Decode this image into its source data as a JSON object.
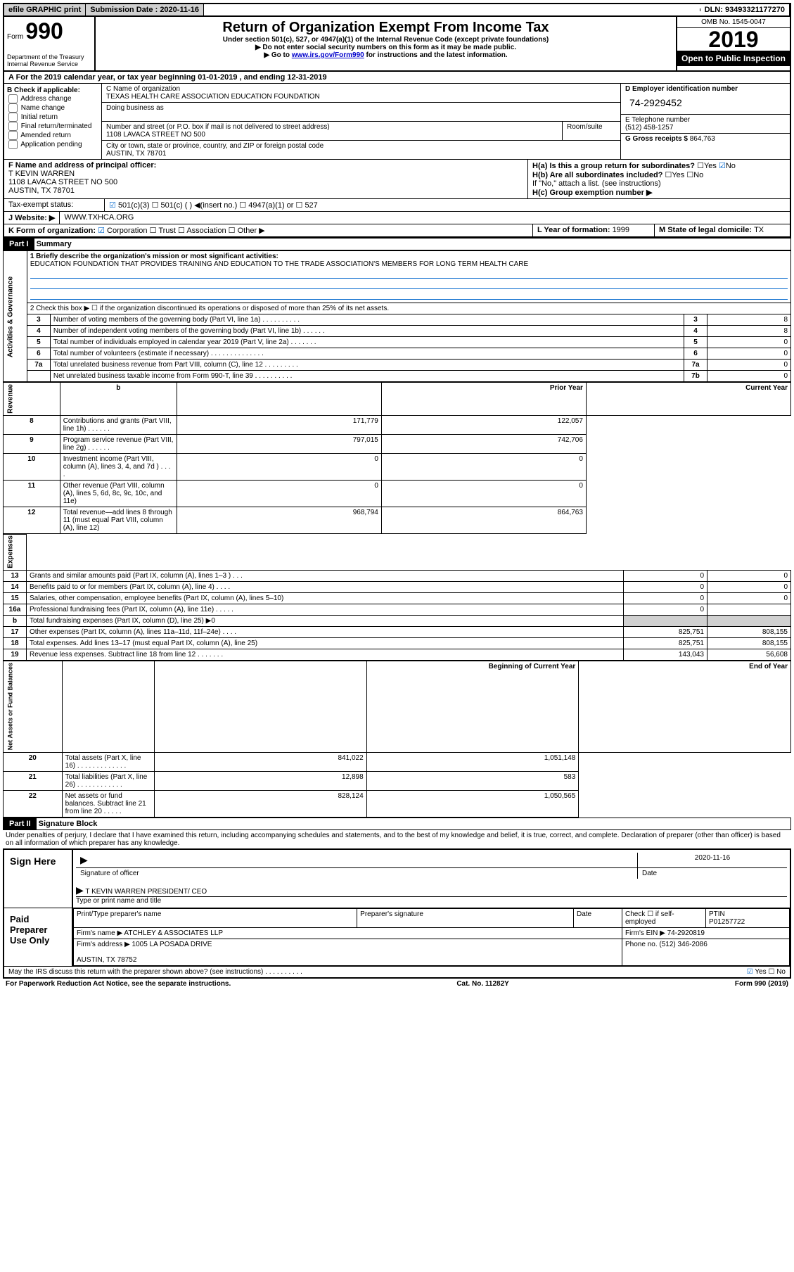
{
  "topbar": {
    "efile": "efile GRAPHIC print",
    "sub_label": "Submission Date : 2020-11-16",
    "dln": "DLN: 93493321177270"
  },
  "header": {
    "form_word": "Form",
    "form_num": "990",
    "dept": "Department of the Treasury\nInternal Revenue Service",
    "title": "Return of Organization Exempt From Income Tax",
    "sub1": "Under section 501(c), 527, or 4947(a)(1) of the Internal Revenue Code (except private foundations)",
    "sub2": "▶ Do not enter social security numbers on this form as it may be made public.",
    "sub3_pre": "▶ Go to ",
    "sub3_link": "www.irs.gov/Form990",
    "sub3_post": " for instructions and the latest information.",
    "omb": "OMB No. 1545-0047",
    "year": "2019",
    "open": "Open to Public Inspection"
  },
  "sectionA": {
    "tax_year": "A For the 2019 calendar year, or tax year beginning 01-01-2019   , and ending 12-31-2019",
    "b_label": "B Check if applicable:",
    "b_opts": [
      "Address change",
      "Name change",
      "Initial return",
      "Final return/terminated",
      "Amended return",
      "Application pending"
    ],
    "c_name_label": "C Name of organization",
    "c_name": "TEXAS HEALTH CARE ASSOCIATION EDUCATION FOUNDATION",
    "dba_label": "Doing business as",
    "addr_label": "Number and street (or P.O. box if mail is not delivered to street address)",
    "room": "Room/suite",
    "addr": "1108 LAVACA STREET NO 500",
    "city_label": "City or town, state or province, country, and ZIP or foreign postal code",
    "city": "AUSTIN, TX  78701",
    "d_label": "D Employer identification number",
    "d_ein": "74-2929452",
    "e_label": "E Telephone number",
    "e_phone": "(512) 458-1257",
    "g_label": "G Gross receipts $ ",
    "g_amt": "864,763",
    "f_label": "F  Name and address of principal officer:",
    "f_name": "T KEVIN WARREN\n1108 LAVACA STREET NO 500\nAUSTIN, TX  78701",
    "ha_label": "H(a)  Is this a group return for subordinates?",
    "hb_label": "H(b)  Are all subordinates included?",
    "hb_note": "If \"No,\" attach a list. (see instructions)",
    "hc_label": "H(c)  Group exemption number ▶",
    "yes": "Yes",
    "no": "No",
    "tax_exempt": "Tax-exempt status:",
    "te_501c3": "501(c)(3)",
    "te_501c": "501(c) (  ) ◀(insert no.)",
    "te_4947": "4947(a)(1) or",
    "te_527": "527",
    "j_label": "J Website: ▶",
    "j_site": "WWW.TXHCA.ORG",
    "k_label": "K Form of organization:",
    "k_corp": "Corporation",
    "k_trust": "Trust",
    "k_assoc": "Association",
    "k_other": "Other ▶",
    "l_label": "L Year of formation: ",
    "l_val": "1999",
    "m_label": "M State of legal domicile: ",
    "m_val": "TX"
  },
  "part1": {
    "header": "Part I",
    "title": "Summary",
    "line1_label": "1  Briefly describe the organization's mission or most significant activities:",
    "line1_text": "EDUCATION FOUNDATION THAT PROVIDES TRAINING AND EDUCATION TO THE TRADE ASSOCIATION'S MEMBERS FOR LONG TERM HEALTH CARE",
    "line2": "2  Check this box ▶ ☐  if the organization discontinued its operations or disposed of more than 25% of its net assets.",
    "rows_ag": [
      {
        "n": "3",
        "label": "Number of voting members of the governing body (Part VI, line 1a)  .  .  .  .  .  .  .  .  .  .",
        "box": "3",
        "val": "8"
      },
      {
        "n": "4",
        "label": "Number of independent voting members of the governing body (Part VI, line 1b)  .  .  .  .  .  .",
        "box": "4",
        "val": "8"
      },
      {
        "n": "5",
        "label": "Total number of individuals employed in calendar year 2019 (Part V, line 2a)  .  .  .  .  .  .  .",
        "box": "5",
        "val": "0"
      },
      {
        "n": "6",
        "label": "Total number of volunteers (estimate if necessary)   .  .  .  .  .  .  .  .  .  .  .  .  .  .",
        "box": "6",
        "val": "0"
      },
      {
        "n": "7a",
        "label": "Total unrelated business revenue from Part VIII, column (C), line 12  .  .  .  .  .  .  .  .  .",
        "box": "7a",
        "val": "0"
      },
      {
        "n": "",
        "label": "Net unrelated business taxable income from Form 990-T, line 39   .  .  .  .  .  .  .  .  .  .",
        "box": "7b",
        "val": "0"
      }
    ],
    "col_prior": "Prior Year",
    "col_current": "Current Year",
    "rows_rev": [
      {
        "n": "8",
        "label": "Contributions and grants (Part VIII, line 1h)   .  .  .  .  .  .",
        "p": "171,779",
        "c": "122,057"
      },
      {
        "n": "9",
        "label": "Program service revenue (Part VIII, line 2g)   .  .  .  .  .  .",
        "p": "797,015",
        "c": "742,706"
      },
      {
        "n": "10",
        "label": "Investment income (Part VIII, column (A), lines 3, 4, and 7d )   .  .  .  .",
        "p": "0",
        "c": "0"
      },
      {
        "n": "11",
        "label": "Other revenue (Part VIII, column (A), lines 5, 6d, 8c, 9c, 10c, and 11e)",
        "p": "0",
        "c": "0"
      },
      {
        "n": "12",
        "label": "Total revenue—add lines 8 through 11 (must equal Part VIII, column (A), line 12)",
        "p": "968,794",
        "c": "864,763"
      }
    ],
    "rows_exp": [
      {
        "n": "13",
        "label": "Grants and similar amounts paid (Part IX, column (A), lines 1–3 )  .  .  .",
        "p": "0",
        "c": "0"
      },
      {
        "n": "14",
        "label": "Benefits paid to or for members (Part IX, column (A), line 4)   .  .  .  .",
        "p": "0",
        "c": "0"
      },
      {
        "n": "15",
        "label": "Salaries, other compensation, employee benefits (Part IX, column (A), lines 5–10)",
        "p": "0",
        "c": "0"
      },
      {
        "n": "16a",
        "label": "Professional fundraising fees (Part IX, column (A), line 11e)   .  .  .  .  .",
        "p": "0",
        "c": ""
      },
      {
        "n": "b",
        "label": "Total fundraising expenses (Part IX, column (D), line 25) ▶0",
        "p": "",
        "c": "",
        "shaded": true
      },
      {
        "n": "17",
        "label": "Other expenses (Part IX, column (A), lines 11a–11d, 11f–24e)   .  .  .  .",
        "p": "825,751",
        "c": "808,155"
      },
      {
        "n": "18",
        "label": "Total expenses. Add lines 13–17 (must equal Part IX, column (A), line 25)",
        "p": "825,751",
        "c": "808,155"
      },
      {
        "n": "19",
        "label": "Revenue less expenses. Subtract line 18 from line 12  .  .  .  .  .  .  .",
        "p": "143,043",
        "c": "56,608"
      }
    ],
    "col_begin": "Beginning of Current Year",
    "col_end": "End of Year",
    "rows_net": [
      {
        "n": "20",
        "label": "Total assets (Part X, line 16)  .  .  .  .  .  .  .  .  .  .  .  .  .",
        "p": "841,022",
        "c": "1,051,148"
      },
      {
        "n": "21",
        "label": "Total liabilities (Part X, line 26)  .  .  .  .  .  .  .  .  .  .  .  .",
        "p": "12,898",
        "c": "583"
      },
      {
        "n": "22",
        "label": "Net assets or fund balances. Subtract line 21 from line 20  .  .  .  .  .",
        "p": "828,124",
        "c": "1,050,565"
      }
    ],
    "side_ag": "Activities & Governance",
    "side_rev": "Revenue",
    "side_exp": "Expenses",
    "side_net": "Net Assets or Fund Balances"
  },
  "part2": {
    "header": "Part II",
    "title": "Signature Block",
    "penalty": "Under penalties of perjury, I declare that I have examined this return, including accompanying schedules and statements, and to the best of my knowledge and belief, it is true, correct, and complete. Declaration of preparer (other than officer) is based on all information of which preparer has any knowledge.",
    "sign_here": "Sign Here",
    "sig_officer": "Signature of officer",
    "sig_date": "Date",
    "sig_date_val": "2020-11-16",
    "sig_name": "T KEVIN WARREN  PRESIDENT/ CEO",
    "sig_type": "Type or print name and title",
    "paid": "Paid Preparer Use Only",
    "prep_name": "Print/Type preparer's name",
    "prep_sig": "Preparer's signature",
    "prep_date": "Date",
    "prep_check": "Check ☐ if self-employed",
    "ptin_label": "PTIN",
    "ptin": "P01257722",
    "firm_name_label": "Firm's name    ▶",
    "firm_name": "ATCHLEY & ASSOCIATES LLP",
    "firm_ein_label": "Firm's EIN ▶",
    "firm_ein": "74-2920819",
    "firm_addr_label": "Firm's address ▶",
    "firm_addr": "1005 LA POSADA DRIVE\n\nAUSTIN, TX  78752",
    "firm_phone_label": "Phone no.",
    "firm_phone": "(512) 346-2086",
    "discuss": "May the IRS discuss this return with the preparer shown above? (see instructions)   .  .  .  .  .  .  .  .  .  .",
    "discuss_yes": "Yes",
    "discuss_no": "No"
  },
  "footer": {
    "pra": "For Paperwork Reduction Act Notice, see the separate instructions.",
    "cat": "Cat. No. 11282Y",
    "form": "Form 990 (2019)"
  }
}
